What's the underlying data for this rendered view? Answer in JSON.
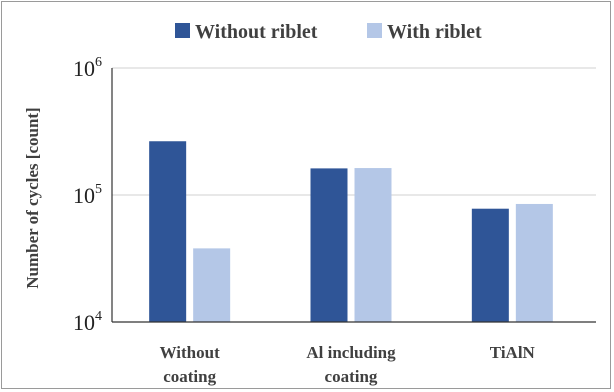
{
  "chart_data": {
    "type": "bar",
    "yscale": "log",
    "ylim": [
      10000,
      1000000
    ],
    "ylabel": "Number of cycles [count]",
    "yticks": [
      {
        "value": 10000,
        "base": "10",
        "exp": "4"
      },
      {
        "value": 100000,
        "base": "10",
        "exp": "5"
      },
      {
        "value": 1000000,
        "base": "10",
        "exp": "6"
      }
    ],
    "categories": [
      [
        "Without",
        "coating"
      ],
      [
        "Al including",
        "coating"
      ],
      [
        "TiAlN"
      ]
    ],
    "series": [
      {
        "name": "Without riblet",
        "color": "#2f5597",
        "values": [
          265000,
          162000,
          78000
        ]
      },
      {
        "name": "With riblet",
        "color": "#b4c7e7",
        "values": [
          38000,
          163000,
          85000
        ]
      }
    ],
    "legend": "top-center",
    "grid": "major-y"
  }
}
